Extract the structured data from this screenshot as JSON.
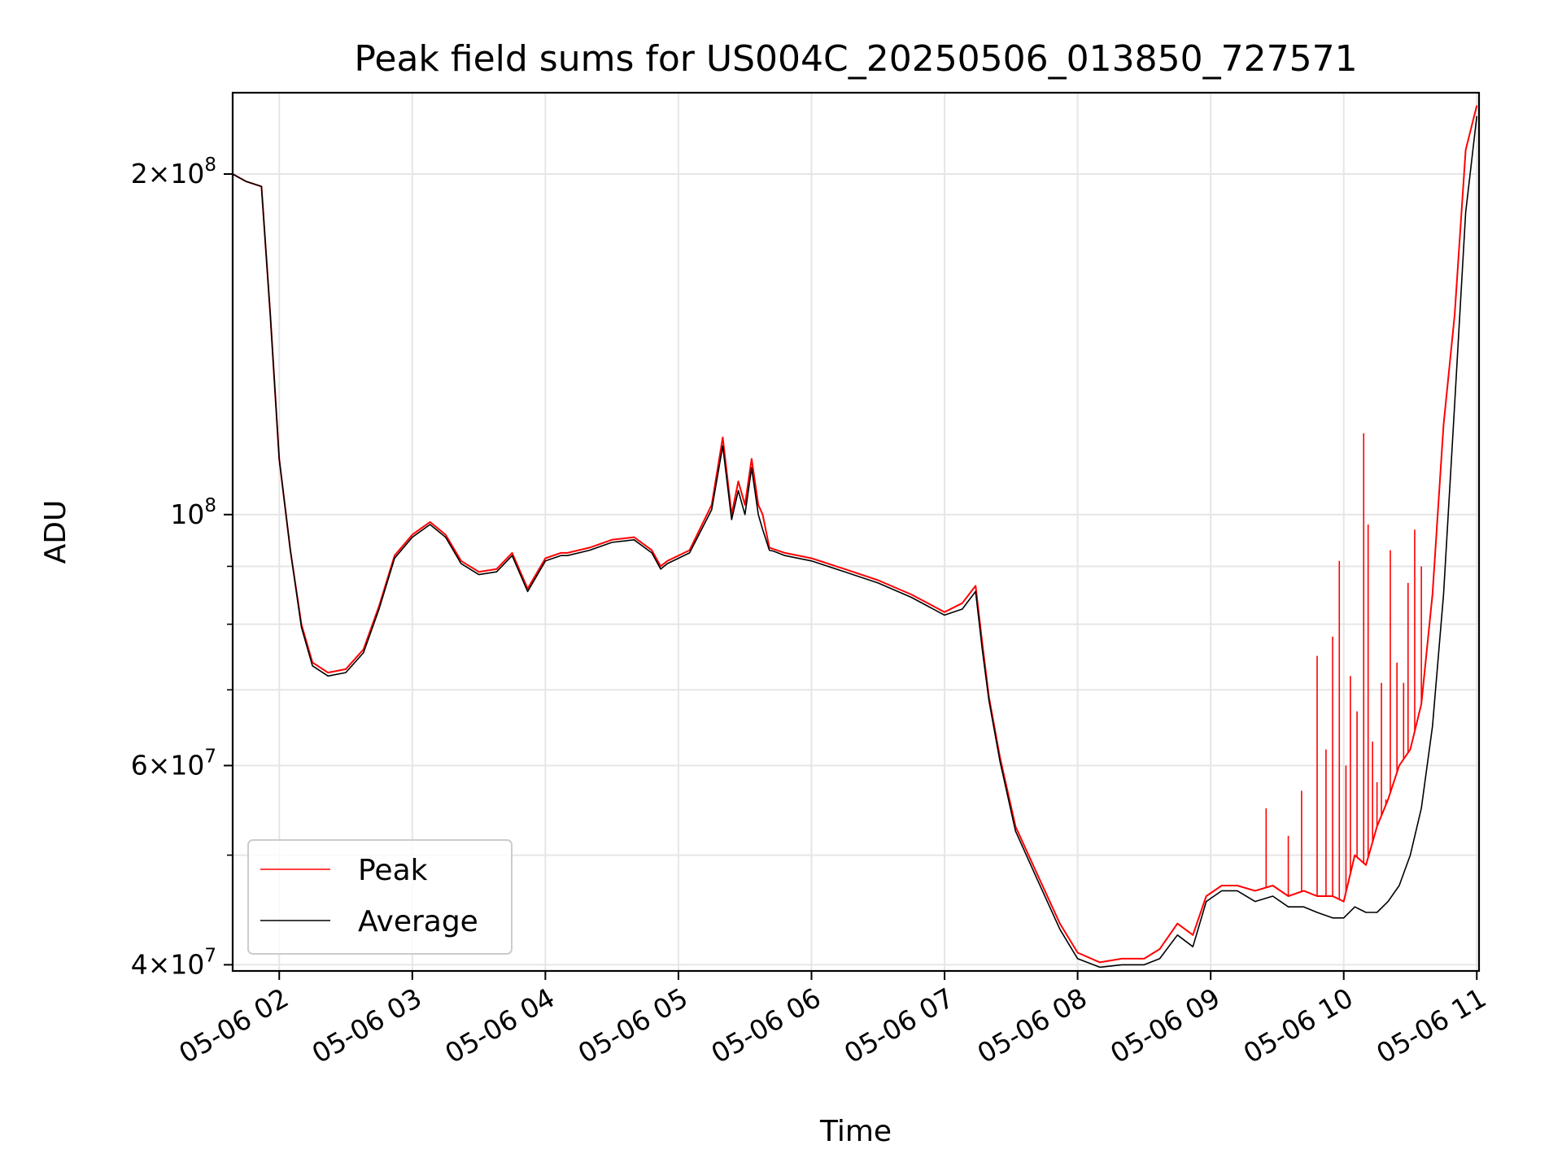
{
  "chart_data": {
    "type": "line",
    "title": "Peak field sums for US004C_20250506_013850_727571",
    "xlabel": "Time",
    "ylabel": "ADU",
    "yscale": "log",
    "xlim": [
      "05-06 01:39",
      "05-06 11:01"
    ],
    "ylim": [
      39500000,
      236000000
    ],
    "grid": true,
    "legend_position": "lower-left",
    "x_ticks": [
      "05-06 02",
      "05-06 03",
      "05-06 04",
      "05-06 05",
      "05-06 06",
      "05-06 07",
      "05-06 08",
      "05-06 09",
      "05-06 10",
      "05-06 11"
    ],
    "y_ticks": [
      {
        "value": 40000000,
        "base": "4",
        "exp": "7"
      },
      {
        "value": 60000000,
        "base": "6",
        "exp": "7"
      },
      {
        "value": 100000000,
        "base": "",
        "exp": "8"
      },
      {
        "value": 200000000,
        "base": "2",
        "exp": "8"
      }
    ],
    "series": [
      {
        "name": "Peak",
        "color": "#ff0000",
        "x": [
          "05-06 01:39",
          "05-06 01:45",
          "05-06 01:52",
          "05-06 01:56",
          "05-06 02:00",
          "05-06 02:05",
          "05-06 02:10",
          "05-06 02:15",
          "05-06 02:22",
          "05-06 02:30",
          "05-06 02:38",
          "05-06 02:45",
          "05-06 02:52",
          "05-06 03:00",
          "05-06 03:08",
          "05-06 03:15",
          "05-06 03:22",
          "05-06 03:30",
          "05-06 03:38",
          "05-06 03:45",
          "05-06 03:52",
          "05-06 04:00",
          "05-06 04:07",
          "05-06 04:10",
          "05-06 04:20",
          "05-06 04:30",
          "05-06 04:40",
          "05-06 04:48",
          "05-06 04:52",
          "05-06 04:55",
          "05-06 05:05",
          "05-06 05:15",
          "05-06 05:20",
          "05-06 05:24",
          "05-06 05:27",
          "05-06 05:30",
          "05-06 05:33",
          "05-06 05:36",
          "05-06 05:38",
          "05-06 05:41",
          "05-06 05:43",
          "05-06 05:48",
          "05-06 06:00",
          "05-06 06:15",
          "05-06 06:30",
          "05-06 06:45",
          "05-06 07:00",
          "05-06 07:08",
          "05-06 07:14",
          "05-06 07:17",
          "05-06 07:20",
          "05-06 07:25",
          "05-06 07:32",
          "05-06 07:42",
          "05-06 07:52",
          "05-06 08:00",
          "05-06 08:10",
          "05-06 08:20",
          "05-06 08:30",
          "05-06 08:37",
          "05-06 08:45",
          "05-06 08:52",
          "05-06 08:58",
          "05-06 09:05",
          "05-06 09:12",
          "05-06 09:20",
          "05-06 09:28",
          "05-06 09:35",
          "05-06 09:42",
          "05-06 09:48",
          "05-06 09:55",
          "05-06 10:00",
          "05-06 10:05",
          "05-06 10:10",
          "05-06 10:15",
          "05-06 10:20",
          "05-06 10:25",
          "05-06 10:30",
          "05-06 10:35",
          "05-06 10:40",
          "05-06 10:45",
          "05-06 10:50",
          "05-06 10:55",
          "05-06 11:00"
        ],
        "values": [
          200000000,
          197000000,
          195000000,
          150000000,
          112000000,
          93000000,
          80000000,
          74000000,
          72500000,
          73000000,
          76000000,
          83000000,
          92000000,
          96000000,
          98500000,
          96000000,
          91000000,
          89000000,
          89500000,
          92500000,
          86000000,
          91500000,
          92500000,
          92500000,
          93500000,
          95000000,
          95500000,
          93000000,
          90000000,
          91000000,
          93000000,
          102000000,
          117000000,
          100000000,
          107000000,
          102000000,
          112000000,
          102000000,
          100000000,
          93500000,
          93200000,
          92500000,
          91500000,
          89500000,
          87500000,
          85000000,
          82000000,
          83500000,
          86500000,
          77000000,
          69000000,
          61000000,
          53000000,
          48000000,
          43500000,
          41000000,
          40200000,
          40500000,
          40500000,
          41300000,
          43500000,
          42500000,
          46000000,
          47000000,
          47000000,
          46500000,
          47000000,
          46000000,
          46500000,
          46000000,
          46000000,
          45500000,
          50000000,
          49000000,
          53000000,
          56000000,
          60000000,
          62000000,
          68000000,
          85000000,
          120000000,
          150000000,
          210000000,
          230000000
        ]
      },
      {
        "name": "Average",
        "color": "#000000",
        "x": [
          "05-06 01:39",
          "05-06 01:45",
          "05-06 01:52",
          "05-06 01:56",
          "05-06 02:00",
          "05-06 02:05",
          "05-06 02:10",
          "05-06 02:15",
          "05-06 02:22",
          "05-06 02:30",
          "05-06 02:38",
          "05-06 02:45",
          "05-06 02:52",
          "05-06 03:00",
          "05-06 03:08",
          "05-06 03:15",
          "05-06 03:22",
          "05-06 03:30",
          "05-06 03:38",
          "05-06 03:45",
          "05-06 03:52",
          "05-06 04:00",
          "05-06 04:07",
          "05-06 04:10",
          "05-06 04:20",
          "05-06 04:30",
          "05-06 04:40",
          "05-06 04:48",
          "05-06 04:52",
          "05-06 04:55",
          "05-06 05:05",
          "05-06 05:15",
          "05-06 05:20",
          "05-06 05:24",
          "05-06 05:27",
          "05-06 05:30",
          "05-06 05:33",
          "05-06 05:36",
          "05-06 05:38",
          "05-06 05:41",
          "05-06 05:43",
          "05-06 05:48",
          "05-06 06:00",
          "05-06 06:15",
          "05-06 06:30",
          "05-06 06:45",
          "05-06 07:00",
          "05-06 07:08",
          "05-06 07:14",
          "05-06 07:17",
          "05-06 07:20",
          "05-06 07:25",
          "05-06 07:32",
          "05-06 07:42",
          "05-06 07:52",
          "05-06 08:00",
          "05-06 08:10",
          "05-06 08:20",
          "05-06 08:30",
          "05-06 08:37",
          "05-06 08:45",
          "05-06 08:52",
          "05-06 08:58",
          "05-06 09:05",
          "05-06 09:12",
          "05-06 09:20",
          "05-06 09:28",
          "05-06 09:35",
          "05-06 09:42",
          "05-06 09:48",
          "05-06 09:55",
          "05-06 10:00",
          "05-06 10:05",
          "05-06 10:10",
          "05-06 10:15",
          "05-06 10:20",
          "05-06 10:25",
          "05-06 10:30",
          "05-06 10:35",
          "05-06 10:40",
          "05-06 10:45",
          "05-06 10:50",
          "05-06 10:55",
          "05-06 11:00"
        ],
        "values": [
          200000000,
          197000000,
          195000000,
          150000000,
          112000000,
          93000000,
          79500000,
          73500000,
          72000000,
          72500000,
          75500000,
          82500000,
          91500000,
          95500000,
          98000000,
          95500000,
          90500000,
          88500000,
          89000000,
          92000000,
          85500000,
          91000000,
          92000000,
          92000000,
          93000000,
          94500000,
          95000000,
          92500000,
          89500000,
          90500000,
          92500000,
          101000000,
          115000000,
          99000000,
          105000000,
          100000000,
          110000000,
          100000000,
          97000000,
          93000000,
          92800000,
          92000000,
          91000000,
          89000000,
          87000000,
          84500000,
          81500000,
          82500000,
          85500000,
          76000000,
          68500000,
          60500000,
          52500000,
          47500000,
          43000000,
          40500000,
          39800000,
          40000000,
          40000000,
          40500000,
          42500000,
          41500000,
          45500000,
          46500000,
          46500000,
          45500000,
          46000000,
          45000000,
          45000000,
          44500000,
          44000000,
          44000000,
          45000000,
          44500000,
          44500000,
          45500000,
          47000000,
          50000000,
          55000000,
          65000000,
          85000000,
          125000000,
          185000000,
          225000000
        ]
      }
    ],
    "spikes": {
      "series": "Peak",
      "x": [
        "05-06 09:25",
        "05-06 09:35",
        "05-06 09:41",
        "05-06 09:48",
        "05-06 09:52",
        "05-06 09:55",
        "05-06 09:58",
        "05-06 10:01",
        "05-06 10:03",
        "05-06 10:06",
        "05-06 10:09",
        "05-06 10:11",
        "05-06 10:13",
        "05-06 10:15",
        "05-06 10:17",
        "05-06 10:19",
        "05-06 10:21",
        "05-06 10:24",
        "05-06 10:27",
        "05-06 10:29",
        "05-06 10:32",
        "05-06 10:35"
      ],
      "values": [
        55000000,
        52000000,
        57000000,
        75000000,
        62000000,
        78000000,
        91000000,
        60000000,
        72000000,
        67000000,
        118000000,
        98000000,
        63000000,
        58000000,
        71000000,
        56000000,
        93000000,
        74000000,
        71000000,
        87000000,
        97000000,
        90000000
      ]
    }
  }
}
